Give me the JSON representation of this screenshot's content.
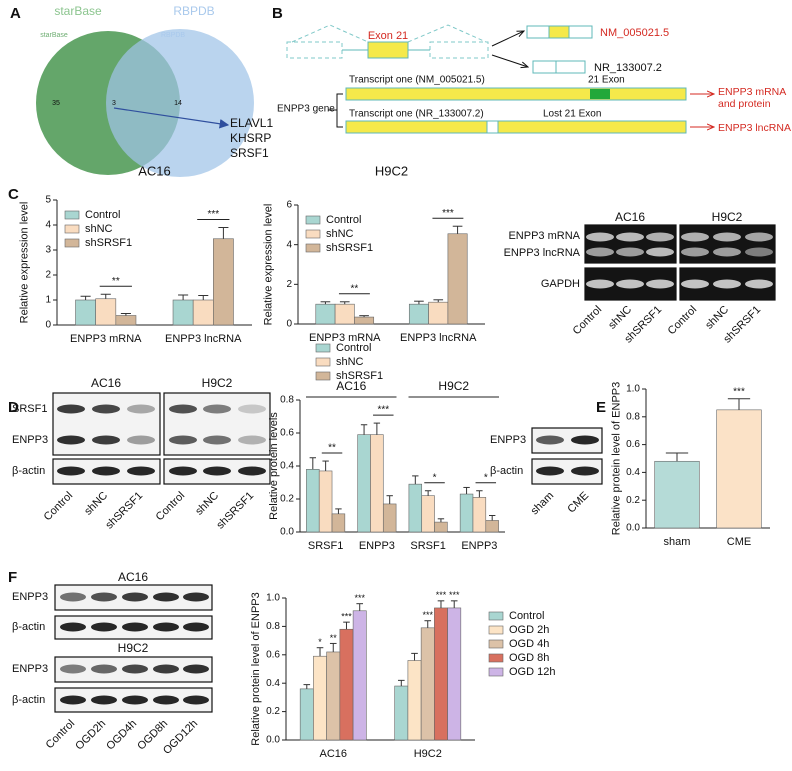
{
  "panel_labels": [
    "A",
    "B",
    "C",
    "D",
    "E",
    "F"
  ],
  "venn": {
    "left_title": "starBase",
    "left_subtitle": "starBase",
    "right_title": "RBPDB",
    "right_subtitle": "RBPDB",
    "left_only": 35,
    "overlap": 3,
    "right_only": 14,
    "genes": [
      "ELAVL1",
      "KHSRP",
      "SRSF1"
    ]
  },
  "diagram": {
    "exon": "Exon 21",
    "isoform_1": "NM_005021.5",
    "isoform_2": "NR_133007.2",
    "transcript_1": "Transcript one (NM_005021.5)",
    "exon_label": "21 Exon",
    "gene": "ENPP3 gene",
    "transcript_2": "Transcript one (NR_133007.2)",
    "lost_exon": "Lost 21 Exon",
    "product_1": "ENPP3 mRNA and protein",
    "product_2": "ENPP3 lncRNA"
  },
  "gel_c": {
    "groups": [
      "AC16",
      "H9C2"
    ],
    "rows": [
      "ENPP3 mRNA",
      "ENPP3 lncRNA",
      "GAPDH"
    ],
    "lanes": [
      "Control",
      "shNC",
      "shSRSF1"
    ]
  },
  "blot_d": {
    "groups": [
      "AC16",
      "H9C2"
    ],
    "rows": [
      "SRSF1",
      "ENPP3",
      "β-actin"
    ],
    "lanes": [
      "Control",
      "shNC",
      "shSRSF1"
    ]
  },
  "blot_e": {
    "rows": [
      "ENPP3",
      "β-actin"
    ],
    "lanes": [
      "sham",
      "CME"
    ]
  },
  "blot_f": {
    "groups": [
      "AC16",
      "H9C2"
    ],
    "rows": [
      "ENPP3",
      "β-actin"
    ],
    "lanes": [
      "Control",
      "OGD2h",
      "OGD4h",
      "OGD8h",
      "OGD12h"
    ]
  },
  "chart_data": [
    {
      "type": "bar",
      "title": "AC16",
      "ylabel": "Relative expression level",
      "categories": [
        "ENPP3 mRNA",
        "ENPP3 lncRNA"
      ],
      "series": [
        {
          "name": "Control",
          "color": "#a9d6d1",
          "values": [
            1.0,
            1.0
          ],
          "errors": [
            0.15,
            0.2
          ]
        },
        {
          "name": "shNC",
          "color": "#f9dcc0",
          "values": [
            1.05,
            1.0
          ],
          "errors": [
            0.18,
            0.18
          ]
        },
        {
          "name": "shSRSF1",
          "color": "#d2b699",
          "values": [
            0.38,
            3.45
          ],
          "errors": [
            0.08,
            0.45
          ]
        }
      ],
      "annotations": [
        "**",
        "***"
      ],
      "ylim": [
        0,
        5
      ],
      "yticks": [
        0,
        1,
        2,
        3,
        4,
        5
      ],
      "legend": "upper left"
    },
    {
      "type": "bar",
      "title": "H9C2",
      "ylabel": "Relative expression level",
      "categories": [
        "ENPP3 mRNA",
        "ENPP3 lncRNA"
      ],
      "series": [
        {
          "name": "Control",
          "color": "#a9d6d1",
          "values": [
            1.0,
            1.0
          ],
          "errors": [
            0.12,
            0.15
          ]
        },
        {
          "name": "shNC",
          "color": "#f9dcc0",
          "values": [
            1.0,
            1.1
          ],
          "errors": [
            0.12,
            0.12
          ]
        },
        {
          "name": "shSRSF1",
          "color": "#d2b699",
          "values": [
            0.35,
            4.55
          ],
          "errors": [
            0.07,
            0.38
          ]
        }
      ],
      "annotations": [
        "**",
        "***"
      ],
      "ylim": [
        0,
        6
      ],
      "yticks": [
        0,
        2,
        4,
        6
      ],
      "legend": "upper left"
    },
    {
      "type": "bar",
      "ylabel": "Relative protein levels",
      "groups": [
        "AC16",
        "H9C2"
      ],
      "categories": [
        "SRSF1",
        "ENPP3",
        "SRSF1",
        "ENPP3"
      ],
      "series": [
        {
          "name": "Control",
          "color": "#a9d6d1",
          "values": [
            0.38,
            0.59,
            0.29,
            0.23
          ],
          "errors": [
            0.07,
            0.06,
            0.05,
            0.04
          ]
        },
        {
          "name": "shNC",
          "color": "#f9dcc0",
          "values": [
            0.37,
            0.59,
            0.22,
            0.21
          ],
          "errors": [
            0.06,
            0.07,
            0.03,
            0.04
          ]
        },
        {
          "name": "shSRSF1",
          "color": "#d2b699",
          "values": [
            0.11,
            0.17,
            0.06,
            0.07
          ],
          "errors": [
            0.03,
            0.05,
            0.02,
            0.03
          ]
        }
      ],
      "annotations": [
        "**",
        "***",
        "*",
        "*"
      ],
      "ylim": [
        0,
        0.8
      ],
      "yticks": [
        {
          "value": 0,
          "label": "0.0"
        },
        0.2,
        0.4,
        0.6,
        0.8
      ],
      "legend": "top"
    },
    {
      "type": "bar",
      "ylabel": "Relative protein level of ENPP3",
      "categories": [
        "sham",
        "CME"
      ],
      "values": [
        0.48,
        0.85
      ],
      "colors": [
        "#b5dbd7",
        "#fbe2c7"
      ],
      "errors": [
        0.06,
        0.08
      ],
      "annotations": [
        null,
        "***"
      ],
      "ylim": [
        0,
        1
      ],
      "yticks": [
        {
          "value": 0,
          "label": "0.0"
        },
        0.2,
        0.4,
        0.6,
        0.8,
        {
          "value": 1,
          "label": "1.0"
        }
      ]
    },
    {
      "type": "bar",
      "ylabel": "Relative protein level of ENPP3",
      "categories": [
        "AC16",
        "H9C2"
      ],
      "series": [
        {
          "name": "Control",
          "color": "#a9d6d1",
          "values": [
            0.36,
            0.38
          ],
          "errors": [
            0.03,
            0.04
          ],
          "annotations": [
            null,
            null
          ]
        },
        {
          "name": "OGD 2h",
          "color": "#fce4c6",
          "values": [
            0.59,
            0.56
          ],
          "errors": [
            0.06,
            0.05
          ],
          "annotations": [
            "*",
            null
          ]
        },
        {
          "name": "OGD 4h",
          "color": "#dcc2a8",
          "values": [
            0.62,
            0.79
          ],
          "errors": [
            0.06,
            0.05
          ],
          "annotations": [
            "**",
            "***"
          ]
        },
        {
          "name": "OGD 8h",
          "color": "#d8705f",
          "values": [
            0.78,
            0.93
          ],
          "errors": [
            0.05,
            0.05
          ],
          "annotations": [
            "***",
            "***"
          ]
        },
        {
          "name": "OGD 12h",
          "color": "#cdb4e6",
          "values": [
            0.91,
            0.93
          ],
          "errors": [
            0.05,
            0.05
          ],
          "annotations": [
            "***",
            "***"
          ]
        }
      ],
      "ylim": [
        0,
        1
      ],
      "yticks": [
        {
          "value": 0,
          "label": "0.0"
        },
        0.2,
        0.4,
        0.6,
        0.8,
        {
          "value": 1,
          "label": "1.0"
        }
      ],
      "legend": "right"
    }
  ]
}
